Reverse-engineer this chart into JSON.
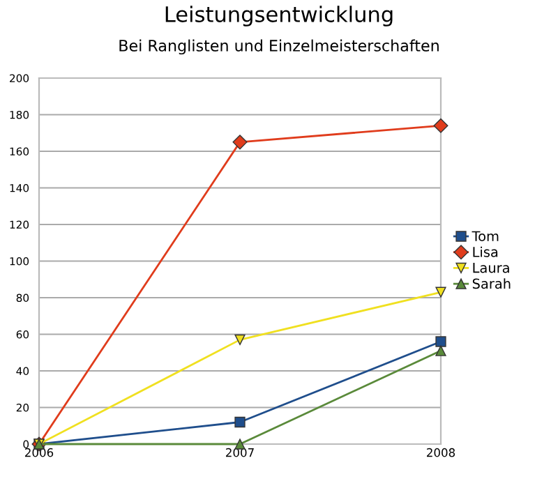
{
  "chart_data": {
    "type": "line",
    "title": "Leistungsentwicklung",
    "subtitle": "Bei Ranglisten und Einzelmeisterschaften",
    "categories": [
      "2006",
      "2007",
      "2008"
    ],
    "series": [
      {
        "name": "Tom",
        "color": "#1f4e8c",
        "marker": "square",
        "values": [
          0,
          12,
          56
        ]
      },
      {
        "name": "Lisa",
        "color": "#e03c1c",
        "marker": "diamond",
        "values": [
          0,
          165,
          174
        ]
      },
      {
        "name": "Laura",
        "color": "#f0e020",
        "marker": "triangle_down",
        "values": [
          0,
          57,
          83
        ]
      },
      {
        "name": "Sarah",
        "color": "#5a8a3a",
        "marker": "triangle",
        "values": [
          0,
          0,
          51
        ]
      }
    ],
    "ylim": [
      0,
      200
    ],
    "yticks": [
      0,
      20,
      40,
      60,
      80,
      100,
      120,
      140,
      160,
      180,
      200
    ],
    "grid": "y",
    "legend": "right"
  }
}
